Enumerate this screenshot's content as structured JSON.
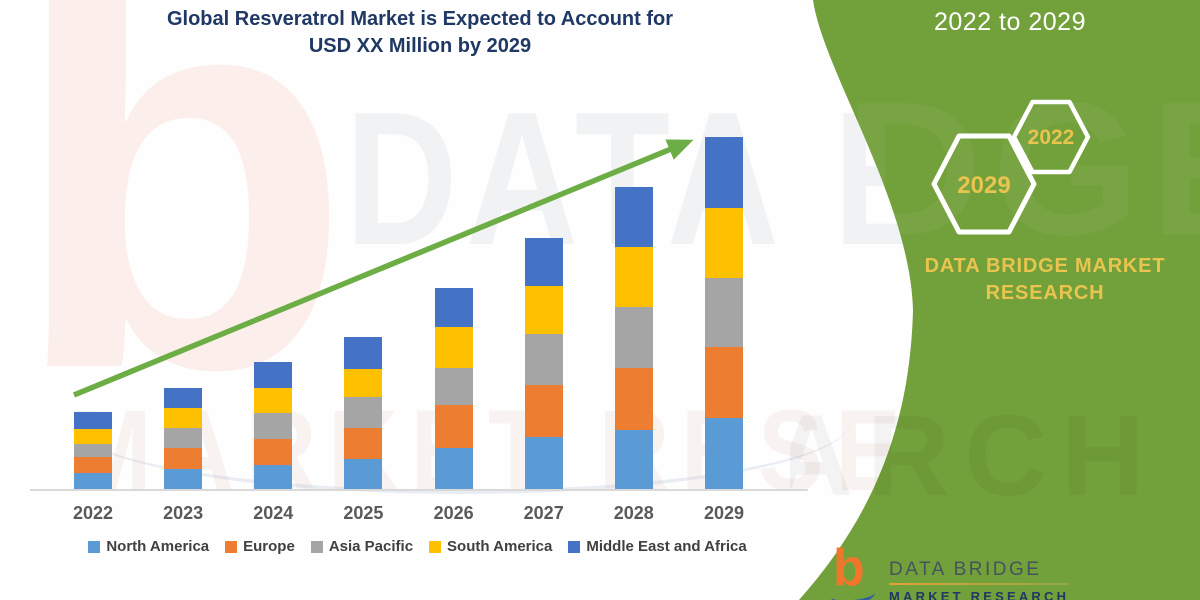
{
  "title": {
    "line1": "Global Resveratrol Market is Expected to Account for",
    "line2": "USD XX Million by 2029"
  },
  "side_panel": {
    "range_label": "2022 to 2029",
    "hexagons": [
      {
        "label": "2029"
      },
      {
        "label": "2022"
      }
    ],
    "brand_text": "DATA BRIDGE MARKET RESEARCH",
    "logo": {
      "name": "DATA BRIDGE",
      "subtext": "MARKET RESEARCH"
    },
    "colors": {
      "panel_green": "#72A03A",
      "accent_gold": "#E9C44F"
    }
  },
  "watermarks": {
    "letter": "b",
    "upper_text": "DATA BRI",
    "lower_text": "MARKET RESE",
    "panel_upper_text": "DGE",
    "panel_lower_text": "ARCH"
  },
  "chart_data": {
    "type": "bar",
    "stacked": true,
    "title": "Global Resveratrol Market is Expected to Account for USD XX Million by 2029",
    "xlabel": "",
    "ylabel": "",
    "y_axis_visible": false,
    "gridlines": false,
    "legend_position": "bottom",
    "units": "relative units (actual values shown as USD XX Million; heights estimated from chart pixels)",
    "categories": [
      "2022",
      "2023",
      "2024",
      "2025",
      "2026",
      "2027",
      "2028",
      "2029"
    ],
    "series": [
      {
        "name": "North America",
        "color": "#5B9BD5",
        "values": [
          16,
          20,
          24,
          30,
          41,
          52,
          59,
          71
        ]
      },
      {
        "name": "Europe",
        "color": "#ED7D31",
        "values": [
          16,
          21,
          26,
          31,
          43,
          52,
          62,
          71
        ]
      },
      {
        "name": "Asia Pacific",
        "color": "#A5A5A5",
        "values": [
          13,
          20,
          26,
          31,
          37,
          51,
          61,
          69
        ]
      },
      {
        "name": "South America",
        "color": "#FFC000",
        "values": [
          15,
          20,
          25,
          28,
          41,
          48,
          60,
          70
        ]
      },
      {
        "name": "Middle East and Africa",
        "color": "#4472C4",
        "values": [
          17,
          20,
          26,
          32,
          39,
          48,
          60,
          71
        ]
      }
    ],
    "totals": [
      77,
      101,
      127,
      152,
      201,
      251,
      302,
      352
    ],
    "trend_arrow": {
      "present": true,
      "color": "#6CAE45",
      "from": [
        74,
        395
      ],
      "to": [
        694,
        139
      ]
    }
  }
}
